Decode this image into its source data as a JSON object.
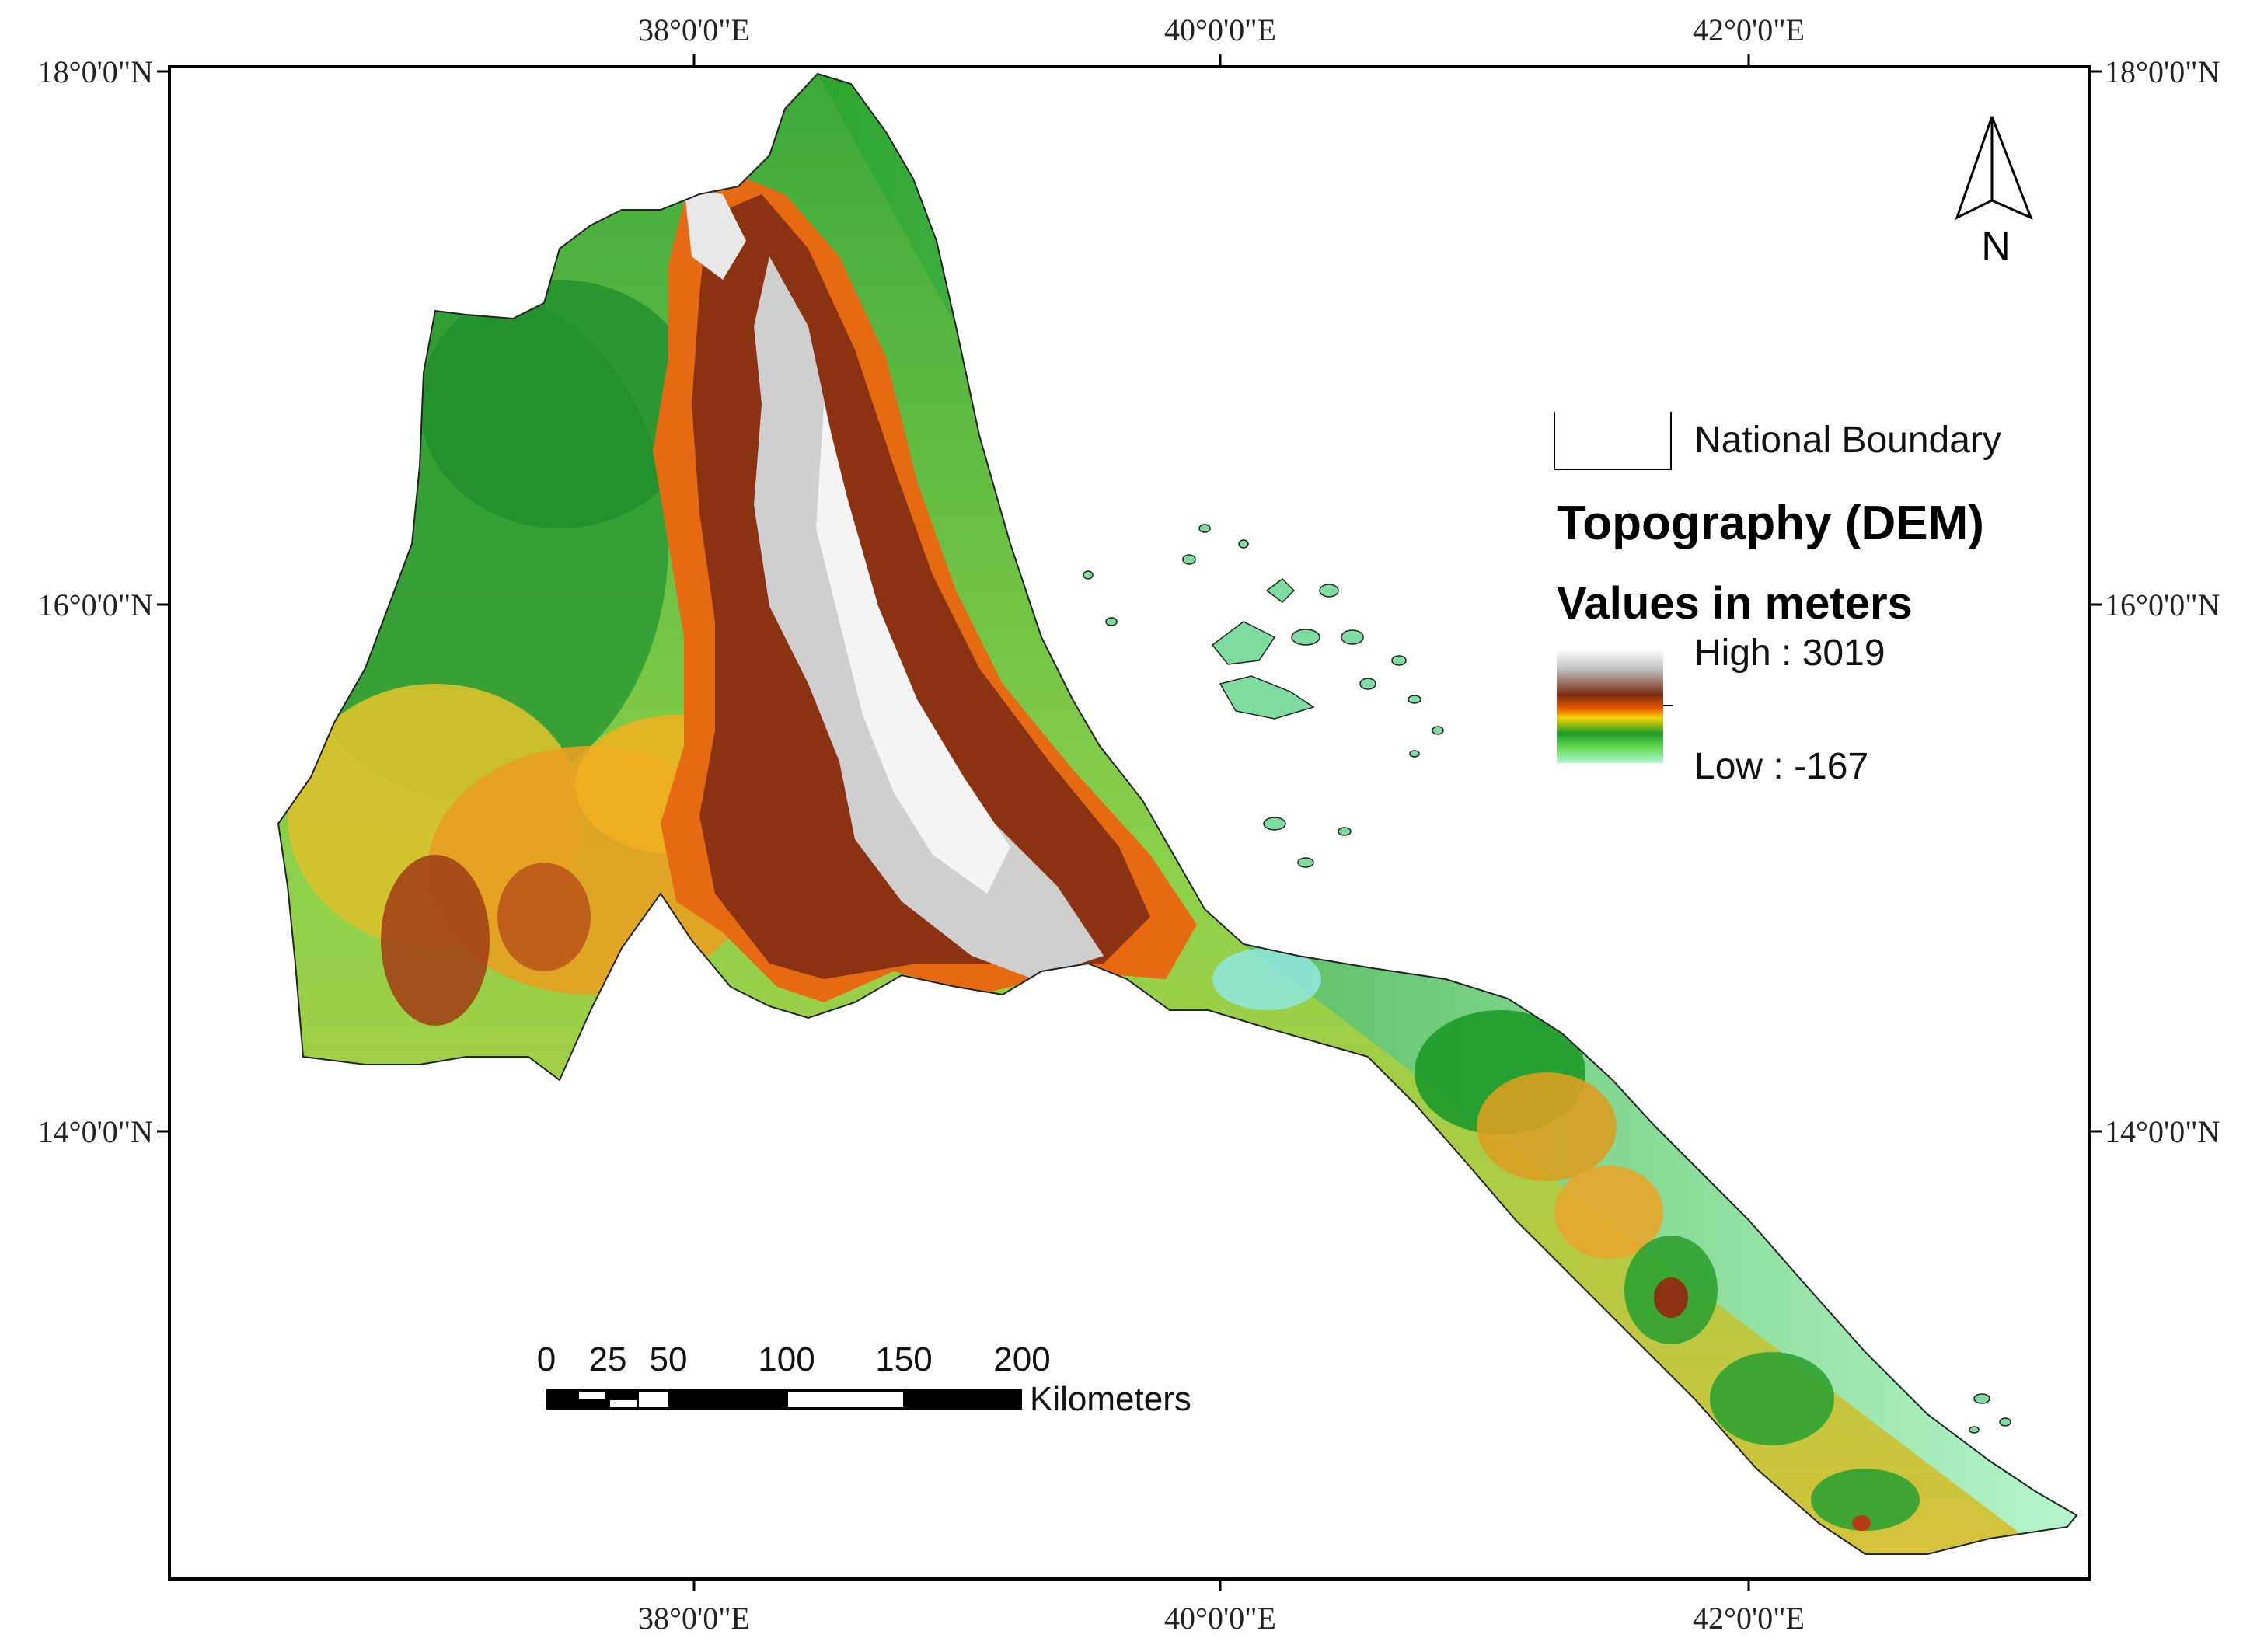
{
  "graticule": {
    "top_labels": [
      "38°0'0\"E",
      "40°0'0\"E",
      "42°0'0\"E"
    ],
    "bottom_labels": [
      "38°0'0\"E",
      "40°0'0\"E",
      "42°0'0\"E"
    ],
    "left_labels": [
      "18°0'0\"N",
      "16°0'0\"N",
      "14°0'0\"N"
    ],
    "right_labels": [
      "18°0'0\"N",
      "16°0'0\"N",
      "14°0'0\"N"
    ]
  },
  "north_arrow": {
    "label": "N"
  },
  "legend": {
    "boundary_label": "National Boundary",
    "title": "Topography (DEM)",
    "subtitle": "Values in meters",
    "high_label": "High : 3019",
    "low_label": "Low : -167",
    "high_value": 3019,
    "low_value": -167,
    "ramp_colors": [
      "#ffffff",
      "#bdbdbd",
      "#7a2a10",
      "#e85a00",
      "#f5d400",
      "#1e9a2a",
      "#64d94e",
      "#aef7d8"
    ]
  },
  "scale_bar": {
    "ticks": [
      "0",
      "25",
      "50",
      "100",
      "150",
      "200"
    ],
    "tick_values": [
      0,
      25,
      50,
      100,
      150,
      200
    ],
    "unit": "Kilometers"
  }
}
